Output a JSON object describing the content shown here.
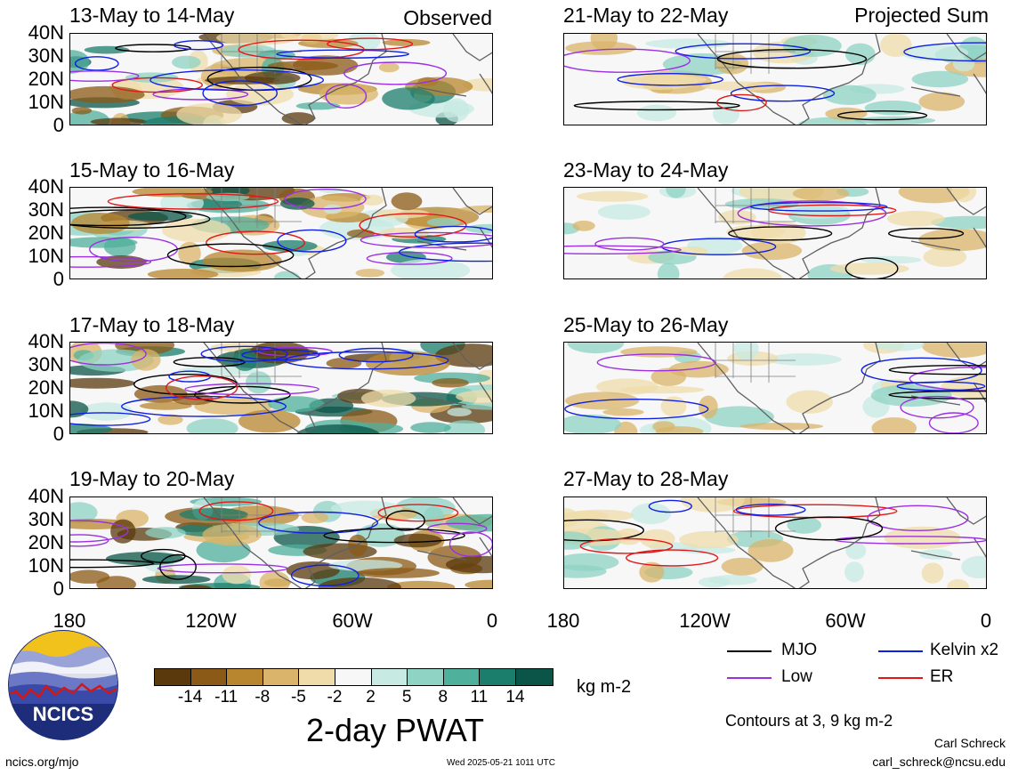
{
  "panels": {
    "left": [
      {
        "title": "13-May to 14-May",
        "label": "Observed"
      },
      {
        "title": "15-May to 16-May",
        "label": ""
      },
      {
        "title": "17-May to 18-May",
        "label": ""
      },
      {
        "title": "19-May to 20-May",
        "label": ""
      }
    ],
    "right": [
      {
        "title": "21-May to 22-May",
        "label": "Projected Sum"
      },
      {
        "title": "23-May to 24-May",
        "label": ""
      },
      {
        "title": "25-May to 26-May",
        "label": ""
      },
      {
        "title": "27-May to 28-May",
        "label": ""
      }
    ]
  },
  "lat_labels": [
    "40N",
    "30N",
    "20N",
    "10N",
    "0"
  ],
  "lon_labels": [
    "180",
    "120W",
    "60W",
    "0"
  ],
  "colorbar": {
    "colors": [
      "#5a3a0d",
      "#8b5a16",
      "#b8862f",
      "#d9b46a",
      "#efdcaa",
      "#f7f7f7",
      "#c7eae3",
      "#8ed3c4",
      "#4fb09c",
      "#1b7d6c",
      "#0b5548"
    ],
    "ticks": [
      "-14",
      "-11",
      "-8",
      "-5",
      "-2",
      "2",
      "5",
      "8",
      "11",
      "14"
    ],
    "units": "kg m-2",
    "title": "2-day PWAT"
  },
  "legend": {
    "items": [
      {
        "label": "MJO",
        "color": "#000000"
      },
      {
        "label": "Kelvin x2",
        "color": "#1020e0"
      },
      {
        "label": "Low",
        "color": "#9b30e0"
      },
      {
        "label": "ER",
        "color": "#e01818"
      }
    ],
    "contours_note": "Contours at 3, 9 kg m-2"
  },
  "logo_text": "NCICS",
  "footer": {
    "url": "ncics.org/mjo",
    "timestamp": "Wed 2025-05-21 1011 UTC",
    "author": "Carl Schreck",
    "email": "carl_schreck@ncsu.edu"
  }
}
